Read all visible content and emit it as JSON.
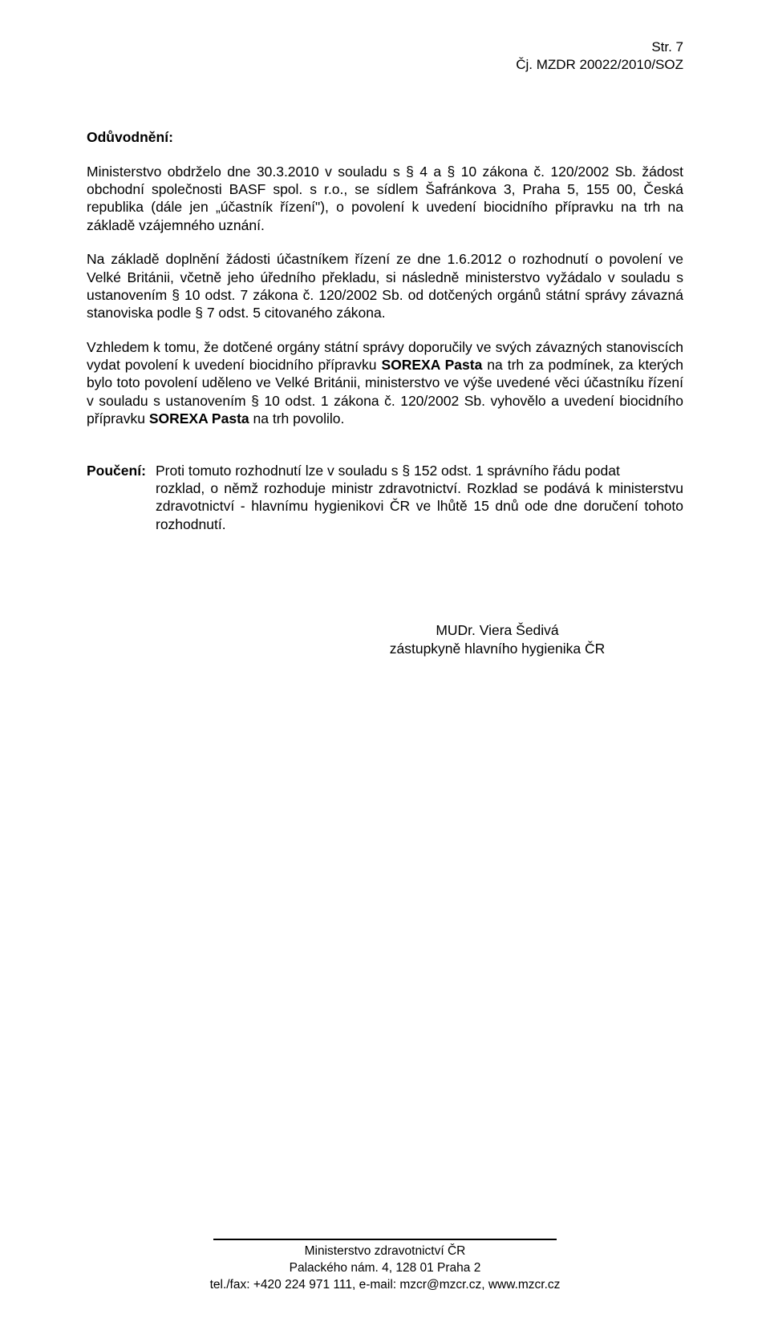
{
  "header": {
    "page_label": "Str. 7",
    "ref": "Čj. MZDR 20022/2010/SOZ"
  },
  "section": {
    "heading": "Odůvodnění:",
    "p1_a": "Ministerstvo obdrželo dne 30.3.2010 v souladu s § 4 a § 10 zákona č. 120/2002 Sb. žádost obchodní společnosti BASF spol. s r.o., se sídlem Šafránkova 3, Praha 5, 155 00, Česká republika (dále jen „účastník řízení\"), o povolení k uvedení biocidního přípravku na trh na základě vzájemného uznání.",
    "p2": "Na základě doplnění žádosti účastníkem řízení ze dne 1.6.2012 o rozhodnutí o povolení ve Velké Británii, včetně jeho úředního překladu, si následně ministerstvo vyžádalo v souladu s ustanovením § 10 odst. 7 zákona č. 120/2002 Sb. od dotčených orgánů státní správy závazná stanoviska podle § 7 odst. 5 citovaného zákona.",
    "p3_a": "Vzhledem k tomu, že dotčené orgány státní správy doporučily ve svých závazných stanoviscích vydat povolení k uvedení biocidního přípravku ",
    "p3_bold1": "SOREXA Pasta",
    "p3_b": " na trh za podmínek, za kterých bylo toto povolení uděleno ve Velké Británii, ministerstvo ve výše uvedené věci účastníku řízení v souladu s ustanovením § 10 odst. 1 zákona č. 120/2002 Sb. vyhovělo a uvedení biocidního přípravku ",
    "p3_bold2": "SOREXA Pasta",
    "p3_c": " na trh povolilo."
  },
  "pouceni": {
    "label": "Poučení:",
    "line1": "Proti tomuto rozhodnutí lze v souladu s § 152 odst. 1 správního řádu podat",
    "rest": "rozklad, o němž rozhoduje ministr zdravotnictví. Rozklad se podává k ministerstvu zdravotnictví - hlavnímu hygienikovi ČR ve lhůtě 15 dnů ode dne doručení tohoto rozhodnutí."
  },
  "signature": {
    "name": "MUDr. Viera Šedivá",
    "title": "zástupkyně hlavního hygienika ČR"
  },
  "footer": {
    "l1": "Ministerstvo zdravotnictví ČR",
    "l2": "Palackého nám. 4, 128 01 Praha 2",
    "l3": "tel./fax: +420 224 971 111, e-mail: mzcr@mzcr.cz, www.mzcr.cz"
  },
  "colors": {
    "text": "#000000",
    "background": "#ffffff"
  },
  "typography": {
    "body_font": "Arial",
    "body_size_pt": 13,
    "footer_font": "Century Gothic",
    "footer_size_pt": 11
  }
}
